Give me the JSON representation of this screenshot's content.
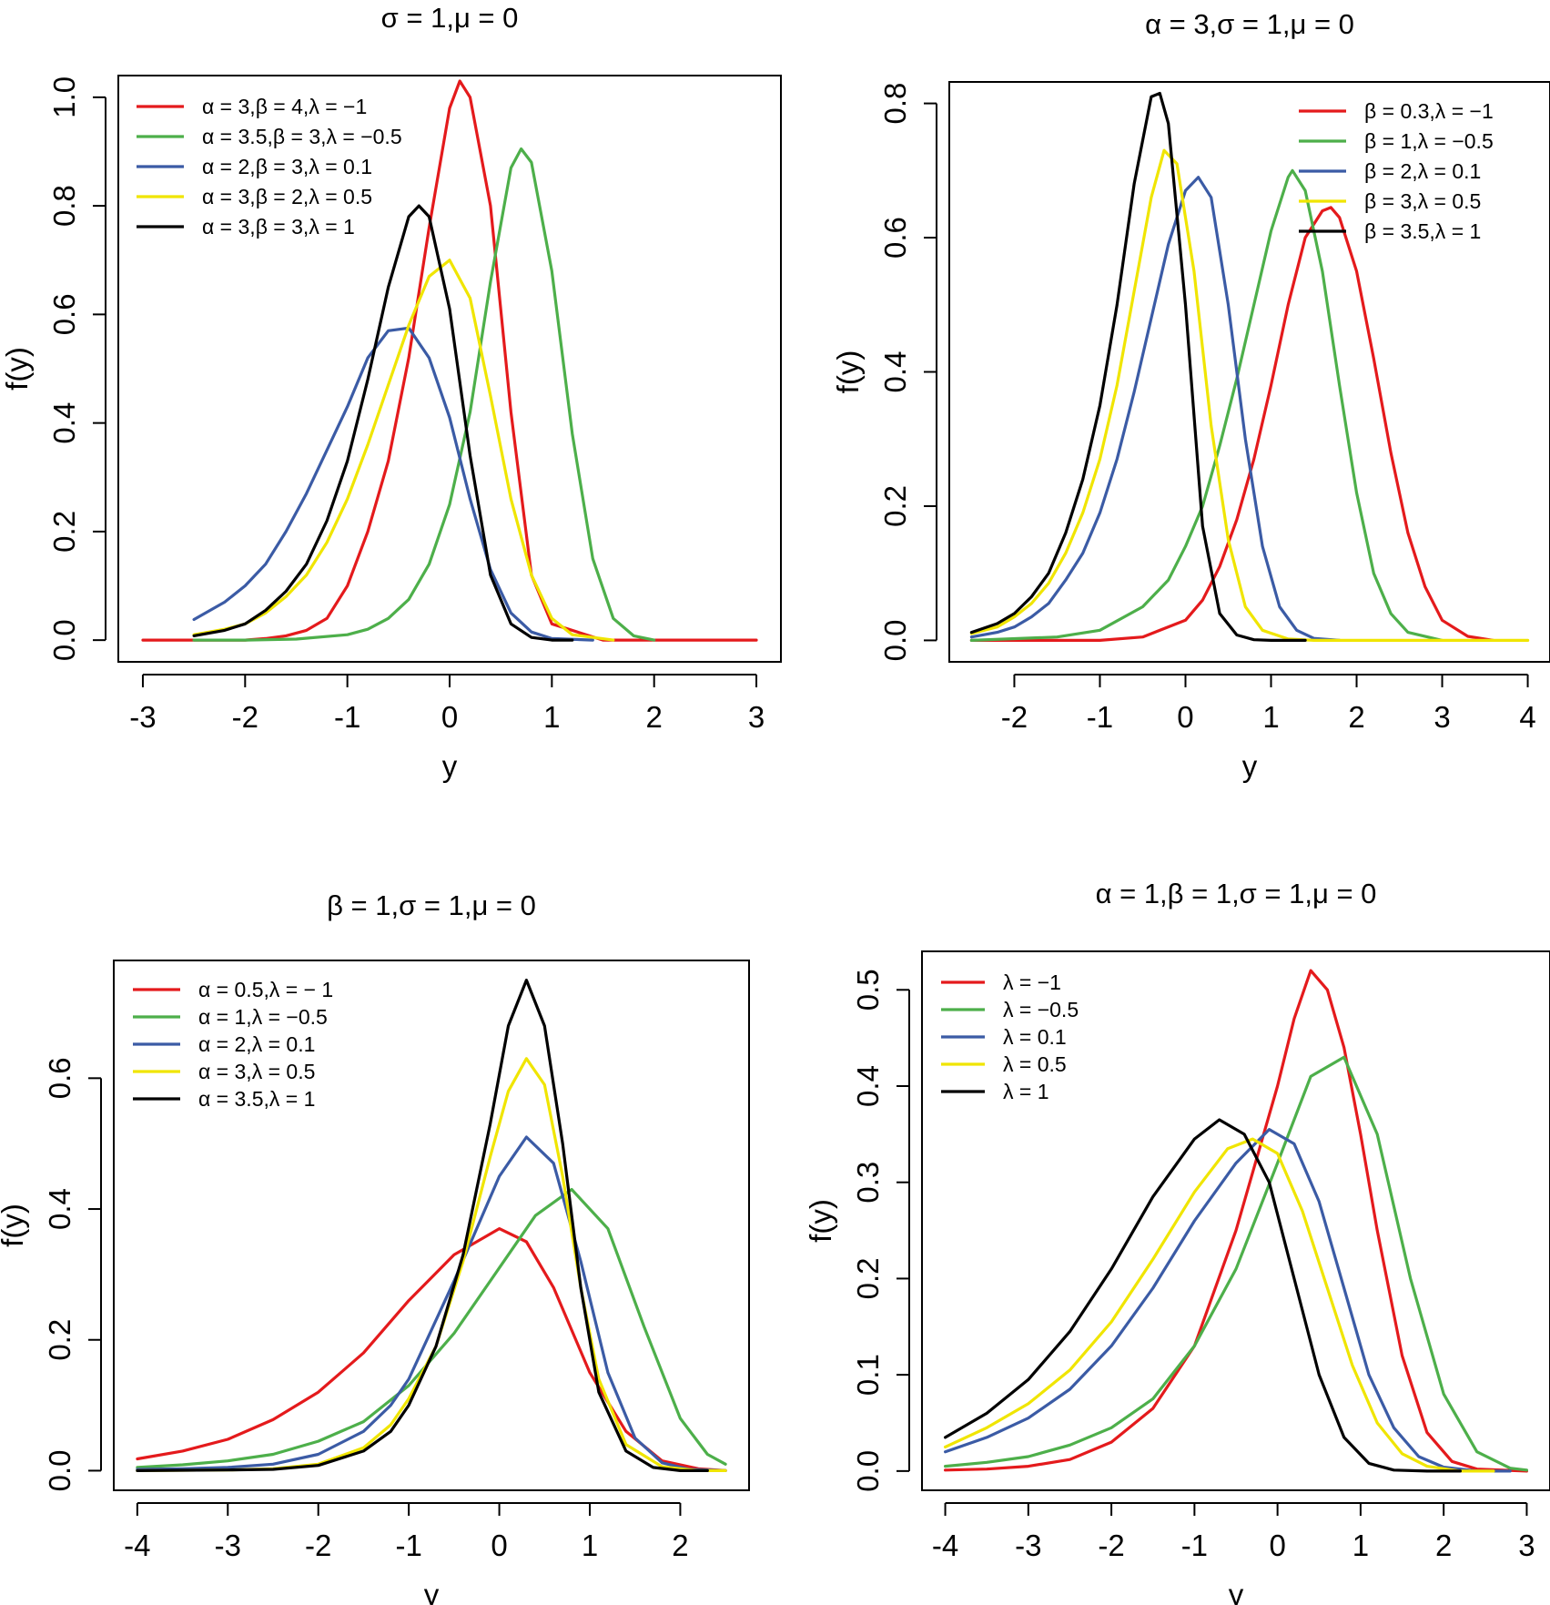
{
  "chart_data": [
    {
      "type": "line",
      "title": "σ = 1,μ = 0",
      "xlabel": "y",
      "ylabel": "f(y)",
      "xlim": [
        -3,
        3
      ],
      "ylim": [
        0,
        1.0
      ],
      "xticks": [
        -3,
        -2,
        -1,
        0,
        1,
        2,
        3
      ],
      "xtick_labels": [
        "-3",
        "-2",
        "-1",
        "0",
        "1",
        "2",
        "3"
      ],
      "yticks": [
        0,
        0.2,
        0.4,
        0.6,
        0.8,
        1.0
      ],
      "ytick_labels": [
        "0.0",
        "0.2",
        "0.4",
        "0.6",
        "0.8",
        "1.0"
      ],
      "legend_position": "top-left",
      "series": [
        {
          "name": "α = 3,β = 4,λ = −1",
          "color": "#e41a1c",
          "x": [
            -3,
            -2.5,
            -2,
            -1.8,
            -1.6,
            -1.4,
            -1.2,
            -1,
            -0.8,
            -0.6,
            -0.4,
            -0.2,
            0,
            0.1,
            0.2,
            0.4,
            0.6,
            0.8,
            1.0,
            1.5,
            2,
            3
          ],
          "y": [
            0,
            0,
            0,
            0.003,
            0.008,
            0.018,
            0.04,
            0.1,
            0.2,
            0.33,
            0.52,
            0.76,
            0.98,
            1.03,
            1.0,
            0.8,
            0.42,
            0.12,
            0.03,
            0,
            0,
            0
          ]
        },
        {
          "name": "α = 3.5,β = 3,λ = −0.5",
          "color": "#4daf4a",
          "x": [
            -2.5,
            -2,
            -1.5,
            -1,
            -0.8,
            -0.6,
            -0.4,
            -0.2,
            0,
            0.2,
            0.4,
            0.6,
            0.7,
            0.8,
            1.0,
            1.2,
            1.4,
            1.6,
            1.8,
            2.0
          ],
          "y": [
            0,
            0,
            0.002,
            0.01,
            0.02,
            0.04,
            0.075,
            0.14,
            0.25,
            0.42,
            0.66,
            0.87,
            0.905,
            0.88,
            0.68,
            0.38,
            0.15,
            0.04,
            0.008,
            0
          ]
        },
        {
          "name": "α = 2,β = 3,λ = 0.1",
          "color": "#3b5ba5",
          "x": [
            -2.5,
            -2.2,
            -2,
            -1.8,
            -1.6,
            -1.4,
            -1.2,
            -1,
            -0.8,
            -0.6,
            -0.4,
            -0.2,
            0,
            0.2,
            0.4,
            0.6,
            0.8,
            1.0,
            1.4
          ],
          "y": [
            0.038,
            0.07,
            0.1,
            0.14,
            0.2,
            0.27,
            0.35,
            0.43,
            0.52,
            0.57,
            0.575,
            0.52,
            0.41,
            0.26,
            0.13,
            0.05,
            0.015,
            0.003,
            0
          ]
        },
        {
          "name": "α = 3,β = 2,λ = 0.5",
          "color": "#f0e500",
          "x": [
            -2.5,
            -2.2,
            -2,
            -1.8,
            -1.6,
            -1.4,
            -1.2,
            -1,
            -0.8,
            -0.6,
            -0.4,
            -0.2,
            0,
            0.2,
            0.4,
            0.6,
            0.8,
            1.0,
            1.2,
            1.6
          ],
          "y": [
            0.01,
            0.02,
            0.03,
            0.05,
            0.08,
            0.12,
            0.18,
            0.26,
            0.36,
            0.47,
            0.58,
            0.67,
            0.7,
            0.63,
            0.45,
            0.26,
            0.12,
            0.04,
            0.01,
            0
          ]
        },
        {
          "name": "α = 3,β = 3,λ = 1",
          "color": "#000000",
          "x": [
            -2.5,
            -2.2,
            -2,
            -1.8,
            -1.6,
            -1.4,
            -1.2,
            -1,
            -0.8,
            -0.6,
            -0.4,
            -0.3,
            -0.2,
            0,
            0.2,
            0.4,
            0.6,
            0.8,
            1.0,
            1.2
          ],
          "y": [
            0.008,
            0.018,
            0.03,
            0.055,
            0.09,
            0.14,
            0.22,
            0.33,
            0.48,
            0.65,
            0.78,
            0.8,
            0.78,
            0.61,
            0.34,
            0.12,
            0.03,
            0.005,
            0,
            0
          ]
        }
      ]
    },
    {
      "type": "line",
      "title": "α = 3,σ = 1,μ = 0",
      "xlabel": "y",
      "ylabel": "f(y)",
      "xlim": [
        -2.5,
        4
      ],
      "ylim": [
        0,
        0.8
      ],
      "xticks": [
        -2,
        -1,
        0,
        1,
        2,
        3,
        4
      ],
      "xtick_labels": [
        "-2",
        "-1",
        "0",
        "1",
        "2",
        "3",
        "4"
      ],
      "yticks": [
        0,
        0.2,
        0.4,
        0.6,
        0.8
      ],
      "ytick_labels": [
        "0.0",
        "0.2",
        "0.4",
        "0.6",
        "0.8"
      ],
      "legend_position": "top-right",
      "series": [
        {
          "name": "β = 0.3,λ = −1",
          "color": "#e41a1c",
          "x": [
            -2.5,
            -1,
            -0.5,
            0,
            0.2,
            0.4,
            0.6,
            0.8,
            1.0,
            1.2,
            1.4,
            1.6,
            1.7,
            1.8,
            2.0,
            2.2,
            2.4,
            2.6,
            2.8,
            3.0,
            3.3,
            3.6
          ],
          "y": [
            0,
            0,
            0.005,
            0.03,
            0.06,
            0.11,
            0.18,
            0.27,
            0.38,
            0.5,
            0.6,
            0.64,
            0.645,
            0.63,
            0.55,
            0.42,
            0.28,
            0.16,
            0.08,
            0.03,
            0.006,
            0
          ]
        },
        {
          "name": "β = 1,λ = −0.5",
          "color": "#4daf4a",
          "x": [
            -2.5,
            -1.5,
            -1,
            -0.5,
            -0.2,
            0,
            0.2,
            0.4,
            0.6,
            0.8,
            1.0,
            1.2,
            1.25,
            1.4,
            1.6,
            1.8,
            2.0,
            2.2,
            2.4,
            2.6,
            3.0
          ],
          "y": [
            0,
            0.005,
            0.015,
            0.05,
            0.09,
            0.14,
            0.2,
            0.29,
            0.39,
            0.5,
            0.61,
            0.69,
            0.7,
            0.67,
            0.55,
            0.38,
            0.22,
            0.1,
            0.04,
            0.012,
            0
          ]
        },
        {
          "name": "β = 2,λ = 0.1",
          "color": "#3b5ba5",
          "x": [
            -2.5,
            -2.2,
            -2,
            -1.8,
            -1.6,
            -1.4,
            -1.2,
            -1,
            -0.8,
            -0.6,
            -0.4,
            -0.2,
            0,
            0.15,
            0.3,
            0.5,
            0.7,
            0.9,
            1.1,
            1.3,
            1.5,
            1.8
          ],
          "y": [
            0.005,
            0.012,
            0.02,
            0.035,
            0.055,
            0.09,
            0.13,
            0.19,
            0.27,
            0.37,
            0.48,
            0.59,
            0.67,
            0.69,
            0.66,
            0.5,
            0.3,
            0.14,
            0.05,
            0.015,
            0.003,
            0
          ]
        },
        {
          "name": "β = 3,λ = 0.5",
          "color": "#f0e500",
          "x": [
            -2.5,
            -2.2,
            -2,
            -1.8,
            -1.6,
            -1.4,
            -1.2,
            -1,
            -0.8,
            -0.6,
            -0.4,
            -0.25,
            -0.1,
            0.1,
            0.3,
            0.5,
            0.7,
            0.9,
            1.2,
            1.5,
            2,
            3,
            4
          ],
          "y": [
            0.01,
            0.02,
            0.035,
            0.055,
            0.085,
            0.13,
            0.19,
            0.27,
            0.38,
            0.52,
            0.66,
            0.73,
            0.71,
            0.55,
            0.32,
            0.15,
            0.05,
            0.015,
            0.002,
            0,
            0,
            0,
            0
          ]
        },
        {
          "name": "β = 3.5,λ = 1",
          "color": "#000000",
          "x": [
            -2.5,
            -2.2,
            -2,
            -1.8,
            -1.6,
            -1.4,
            -1.2,
            -1,
            -0.8,
            -0.6,
            -0.4,
            -0.3,
            -0.2,
            0,
            0.2,
            0.4,
            0.6,
            0.8,
            1.0,
            1.4
          ],
          "y": [
            0.012,
            0.025,
            0.04,
            0.065,
            0.1,
            0.16,
            0.24,
            0.35,
            0.5,
            0.68,
            0.81,
            0.815,
            0.77,
            0.5,
            0.17,
            0.04,
            0.008,
            0.001,
            0,
            0
          ]
        }
      ]
    },
    {
      "type": "line",
      "title": "β = 1,σ = 1,μ = 0",
      "xlabel": "y",
      "ylabel": "f(y)",
      "xlim": [
        -4,
        2.5
      ],
      "ylim": [
        0,
        0.75
      ],
      "xticks": [
        -4,
        -3,
        -2,
        -1,
        0,
        1,
        2
      ],
      "xtick_labels": [
        "-4",
        "-3",
        "-2",
        "-1",
        "0",
        "1",
        "2"
      ],
      "yticks": [
        0,
        0.2,
        0.4,
        0.6
      ],
      "ytick_labels": [
        "0.0",
        "0.2",
        "0.4",
        "0.6"
      ],
      "legend_position": "top-left",
      "series": [
        {
          "name": "α = 0.5,λ = − 1",
          "color": "#e41a1c",
          "x": [
            -4,
            -3.5,
            -3,
            -2.5,
            -2,
            -1.5,
            -1,
            -0.5,
            0,
            0.3,
            0.6,
            1.0,
            1.4,
            1.8,
            2.2,
            2.5
          ],
          "y": [
            0.018,
            0.03,
            0.048,
            0.078,
            0.12,
            0.18,
            0.26,
            0.33,
            0.37,
            0.35,
            0.28,
            0.15,
            0.06,
            0.015,
            0.003,
            0
          ]
        },
        {
          "name": "α = 1,λ = −0.5",
          "color": "#4daf4a",
          "x": [
            -4,
            -3.5,
            -3,
            -2.5,
            -2,
            -1.5,
            -1,
            -0.5,
            0,
            0.4,
            0.8,
            1.2,
            1.6,
            2.0,
            2.3,
            2.5
          ],
          "y": [
            0.005,
            0.009,
            0.015,
            0.025,
            0.045,
            0.075,
            0.13,
            0.21,
            0.31,
            0.39,
            0.43,
            0.37,
            0.22,
            0.08,
            0.025,
            0.01
          ]
        },
        {
          "name": "α = 2,λ = 0.1",
          "color": "#3b5ba5",
          "x": [
            -4,
            -3.5,
            -3,
            -2.5,
            -2,
            -1.5,
            -1.2,
            -1,
            -0.5,
            0,
            0.3,
            0.6,
            0.9,
            1.2,
            1.5,
            1.8,
            2.1,
            2.5
          ],
          "y": [
            0.002,
            0.003,
            0.005,
            0.01,
            0.025,
            0.06,
            0.1,
            0.14,
            0.29,
            0.45,
            0.51,
            0.47,
            0.32,
            0.15,
            0.05,
            0.012,
            0.002,
            0
          ]
        },
        {
          "name": "α = 3,λ = 0.5",
          "color": "#f0e500",
          "x": [
            -4,
            -3,
            -2.5,
            -2,
            -1.5,
            -1.2,
            -1,
            -0.7,
            -0.4,
            -0.1,
            0.1,
            0.3,
            0.5,
            0.7,
            0.9,
            1.1,
            1.4,
            1.8,
            2.2,
            2.5
          ],
          "y": [
            0,
            0.001,
            0.003,
            0.01,
            0.035,
            0.07,
            0.11,
            0.19,
            0.32,
            0.48,
            0.58,
            0.63,
            0.59,
            0.45,
            0.28,
            0.14,
            0.04,
            0.006,
            0,
            0
          ]
        },
        {
          "name": "α = 3.5,λ = 1",
          "color": "#000000",
          "x": [
            -4,
            -3,
            -2.5,
            -2,
            -1.5,
            -1.2,
            -1,
            -0.7,
            -0.4,
            -0.1,
            0.1,
            0.3,
            0.5,
            0.7,
            0.9,
            1.1,
            1.4,
            1.7,
            2.0,
            2.3
          ],
          "y": [
            0,
            0.001,
            0.002,
            0.008,
            0.03,
            0.06,
            0.1,
            0.19,
            0.33,
            0.53,
            0.68,
            0.75,
            0.68,
            0.5,
            0.28,
            0.12,
            0.03,
            0.005,
            0,
            0
          ]
        }
      ]
    },
    {
      "type": "line",
      "title": "α = 1,β = 1,σ = 1,μ = 0",
      "xlabel": "y",
      "ylabel": "f(y)",
      "xlim": [
        -4,
        3
      ],
      "ylim": [
        0,
        0.52
      ],
      "xticks": [
        -4,
        -3,
        -2,
        -1,
        0,
        1,
        2,
        3
      ],
      "xtick_labels": [
        "-4",
        "-3",
        "-2",
        "-1",
        "0",
        "1",
        "2",
        "3"
      ],
      "yticks": [
        0,
        0.1,
        0.2,
        0.3,
        0.4,
        0.5
      ],
      "ytick_labels": [
        "0.0",
        "0.1",
        "0.2",
        "0.3",
        "0.4",
        "0.5"
      ],
      "legend_position": "top-left",
      "series": [
        {
          "name": "λ = −1",
          "color": "#e41a1c",
          "x": [
            -4,
            -3.5,
            -3,
            -2.5,
            -2,
            -1.5,
            -1,
            -0.5,
            0,
            0.2,
            0.4,
            0.6,
            0.8,
            1.0,
            1.2,
            1.5,
            1.8,
            2.1,
            2.4,
            3
          ],
          "y": [
            0.001,
            0.002,
            0.005,
            0.012,
            0.03,
            0.065,
            0.13,
            0.25,
            0.4,
            0.47,
            0.52,
            0.5,
            0.44,
            0.35,
            0.25,
            0.12,
            0.04,
            0.01,
            0.002,
            0
          ]
        },
        {
          "name": "λ = −0.5",
          "color": "#4daf4a",
          "x": [
            -4,
            -3.5,
            -3,
            -2.5,
            -2,
            -1.5,
            -1,
            -0.5,
            0,
            0.4,
            0.8,
            1.2,
            1.6,
            2.0,
            2.4,
            2.8,
            3.0
          ],
          "y": [
            0.005,
            0.009,
            0.015,
            0.027,
            0.045,
            0.075,
            0.13,
            0.21,
            0.32,
            0.41,
            0.43,
            0.35,
            0.2,
            0.08,
            0.02,
            0.003,
            0.001
          ]
        },
        {
          "name": "λ = 0.1",
          "color": "#3b5ba5",
          "x": [
            -4,
            -3.5,
            -3,
            -2.5,
            -2,
            -1.5,
            -1,
            -0.5,
            -0.1,
            0.2,
            0.5,
            0.8,
            1.1,
            1.4,
            1.7,
            2.0,
            2.4,
            2.8
          ],
          "y": [
            0.02,
            0.035,
            0.055,
            0.085,
            0.13,
            0.19,
            0.26,
            0.32,
            0.355,
            0.34,
            0.28,
            0.19,
            0.1,
            0.045,
            0.015,
            0.004,
            0,
            0
          ]
        },
        {
          "name": "λ = 0.5",
          "color": "#f0e500",
          "x": [
            -4,
            -3.5,
            -3,
            -2.5,
            -2,
            -1.5,
            -1,
            -0.6,
            -0.3,
            0,
            0.3,
            0.6,
            0.9,
            1.2,
            1.5,
            1.8,
            2.2,
            2.6
          ],
          "y": [
            0.025,
            0.045,
            0.07,
            0.105,
            0.155,
            0.22,
            0.29,
            0.335,
            0.345,
            0.33,
            0.27,
            0.19,
            0.11,
            0.05,
            0.018,
            0.005,
            0,
            0
          ]
        },
        {
          "name": "λ = 1",
          "color": "#000000",
          "x": [
            -4,
            -3.5,
            -3,
            -2.5,
            -2,
            -1.5,
            -1,
            -0.7,
            -0.4,
            -0.1,
            0.2,
            0.5,
            0.8,
            1.1,
            1.4,
            1.8,
            2.2
          ],
          "y": [
            0.035,
            0.06,
            0.095,
            0.145,
            0.21,
            0.285,
            0.345,
            0.365,
            0.35,
            0.3,
            0.2,
            0.1,
            0.035,
            0.008,
            0.001,
            0,
            0
          ]
        }
      ]
    }
  ]
}
